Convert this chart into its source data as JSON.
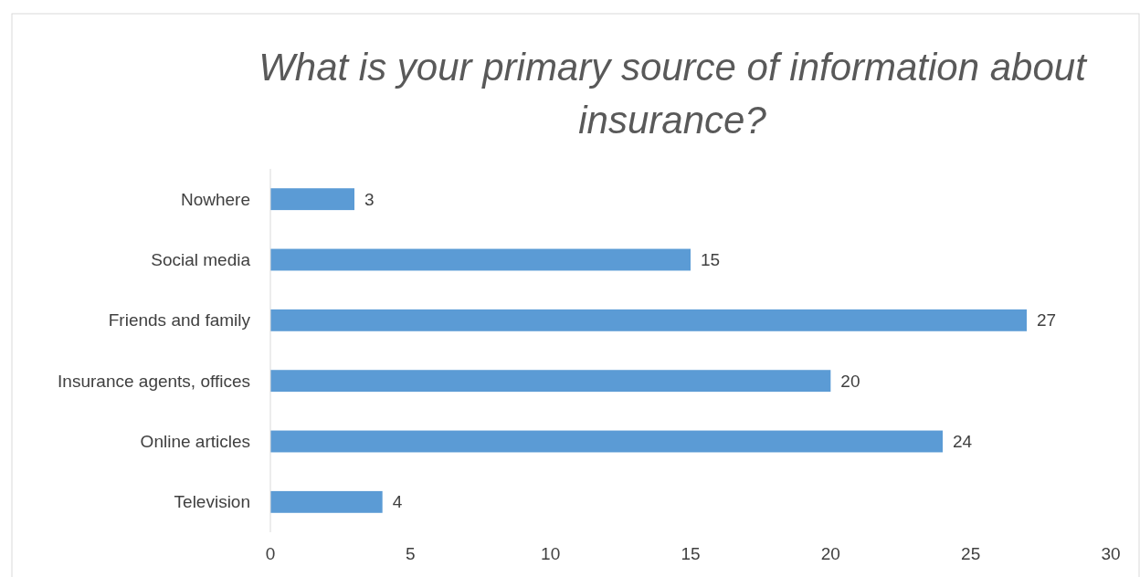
{
  "chart_data": {
    "type": "bar",
    "orientation": "horizontal",
    "title": "What is your primary source of information about insurance?",
    "categories": [
      "Nowhere",
      "Social media",
      "Friends and family",
      "Insurance agents, offices",
      "Online articles",
      "Television"
    ],
    "values": [
      3,
      15,
      27,
      20,
      24,
      4
    ],
    "color": "#5b9bd5",
    "data_labels": true,
    "xlim": [
      0,
      30
    ],
    "xticks": [
      0,
      5,
      10,
      15,
      20,
      25,
      30
    ]
  }
}
